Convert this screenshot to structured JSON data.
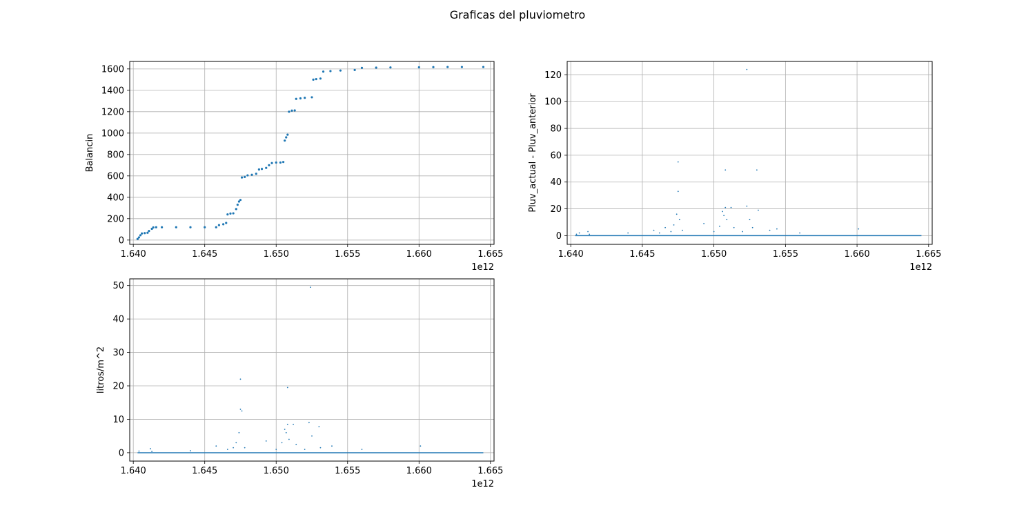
{
  "figure": {
    "title": "Graficas del pluviometro"
  },
  "colors": {
    "series": "#1f77b4",
    "grid": "#b0b0b0",
    "axes": "#000000"
  },
  "chart_data": [
    {
      "type": "scatter",
      "ylabel": "Balancin",
      "xlabel": "",
      "offset_text": "1e12",
      "grid": true,
      "xlim": [
        1.63975,
        1.66525
      ],
      "ylim": [
        -40,
        1670
      ],
      "xticks": [
        1.64,
        1.645,
        1.65,
        1.655,
        1.66,
        1.665
      ],
      "xtick_labels": [
        "1.640",
        "1.645",
        "1.650",
        "1.655",
        "1.660",
        "1.665"
      ],
      "yticks": [
        0,
        200,
        400,
        600,
        800,
        1000,
        1200,
        1400,
        1600
      ],
      "ytick_labels": [
        "0",
        "200",
        "400",
        "600",
        "800",
        "1000",
        "1200",
        "1400",
        "1600"
      ],
      "series": [
        {
          "points": [
            [
              1.6403,
              10
            ],
            [
              1.6404,
              25
            ],
            [
              1.6405,
              45
            ],
            [
              1.6406,
              62
            ],
            [
              1.6408,
              65
            ],
            [
              1.641,
              68
            ],
            [
              1.6411,
              85
            ],
            [
              1.6413,
              105
            ],
            [
              1.6414,
              118
            ],
            [
              1.6416,
              120
            ],
            [
              1.642,
              120
            ],
            [
              1.643,
              120
            ],
            [
              1.644,
              120
            ],
            [
              1.645,
              120
            ],
            [
              1.6458,
              120
            ],
            [
              1.646,
              140
            ],
            [
              1.6463,
              148
            ],
            [
              1.6465,
              160
            ],
            [
              1.6466,
              240
            ],
            [
              1.6468,
              248
            ],
            [
              1.647,
              250
            ],
            [
              1.6472,
              290
            ],
            [
              1.6473,
              330
            ],
            [
              1.6474,
              360
            ],
            [
              1.6475,
              375
            ],
            [
              1.6476,
              585
            ],
            [
              1.6478,
              590
            ],
            [
              1.648,
              605
            ],
            [
              1.6483,
              610
            ],
            [
              1.6486,
              620
            ],
            [
              1.6488,
              660
            ],
            [
              1.649,
              665
            ],
            [
              1.6493,
              675
            ],
            [
              1.6495,
              700
            ],
            [
              1.6497,
              720
            ],
            [
              1.65,
              725
            ],
            [
              1.6503,
              725
            ],
            [
              1.6505,
              730
            ],
            [
              1.6506,
              930
            ],
            [
              1.6507,
              960
            ],
            [
              1.6508,
              985
            ],
            [
              1.6509,
              1200
            ],
            [
              1.6511,
              1210
            ],
            [
              1.6513,
              1212
            ],
            [
              1.6514,
              1320
            ],
            [
              1.6517,
              1325
            ],
            [
              1.652,
              1330
            ],
            [
              1.6525,
              1335
            ],
            [
              1.6526,
              1500
            ],
            [
              1.6528,
              1505
            ],
            [
              1.6531,
              1510
            ],
            [
              1.6533,
              1575
            ],
            [
              1.6538,
              1580
            ],
            [
              1.6545,
              1585
            ],
            [
              1.6555,
              1590
            ],
            [
              1.656,
              1610
            ],
            [
              1.657,
              1612
            ],
            [
              1.658,
              1614
            ],
            [
              1.66,
              1615
            ],
            [
              1.661,
              1617
            ],
            [
              1.662,
              1618
            ],
            [
              1.663,
              1618
            ],
            [
              1.6645,
              1618
            ]
          ]
        }
      ]
    },
    {
      "type": "scatter",
      "ylabel": "Pluv_actual - Pluv_anterior",
      "xlabel": "",
      "offset_text": "1e12",
      "grid": true,
      "xlim": [
        1.63975,
        1.66525
      ],
      "ylim": [
        -6.5,
        130
      ],
      "baseline": [
        1.6403,
        1.6645
      ],
      "xticks": [
        1.64,
        1.645,
        1.65,
        1.655,
        1.66,
        1.665
      ],
      "xtick_labels": [
        "1.640",
        "1.645",
        "1.650",
        "1.655",
        "1.660",
        "1.665"
      ],
      "yticks": [
        0,
        20,
        40,
        60,
        80,
        100,
        120
      ],
      "ytick_labels": [
        "0",
        "20",
        "40",
        "60",
        "80",
        "100",
        "120"
      ],
      "series": [
        {
          "points": [
            [
              1.6404,
              1
            ],
            [
              1.6406,
              2
            ],
            [
              1.6412,
              3
            ],
            [
              1.6413,
              1
            ],
            [
              1.644,
              2
            ],
            [
              1.6458,
              4
            ],
            [
              1.6462,
              2
            ],
            [
              1.6466,
              6
            ],
            [
              1.647,
              3
            ],
            [
              1.6472,
              8
            ],
            [
              1.6474,
              16
            ],
            [
              1.6475,
              55
            ],
            [
              1.6475,
              33
            ],
            [
              1.6476,
              12
            ],
            [
              1.6478,
              4
            ],
            [
              1.6493,
              9
            ],
            [
              1.65,
              3
            ],
            [
              1.6504,
              7
            ],
            [
              1.6506,
              18
            ],
            [
              1.6507,
              15
            ],
            [
              1.6508,
              21
            ],
            [
              1.6508,
              49
            ],
            [
              1.6509,
              12
            ],
            [
              1.6512,
              21
            ],
            [
              1.6514,
              6
            ],
            [
              1.652,
              3
            ],
            [
              1.6523,
              22
            ],
            [
              1.6523,
              124
            ],
            [
              1.6525,
              12
            ],
            [
              1.6527,
              6
            ],
            [
              1.653,
              49
            ],
            [
              1.6531,
              19
            ],
            [
              1.6539,
              4
            ],
            [
              1.6544,
              5
            ],
            [
              1.656,
              2
            ],
            [
              1.6601,
              5
            ]
          ]
        }
      ]
    },
    {
      "type": "scatter",
      "ylabel": "litros/m^2",
      "xlabel": "",
      "offset_text": "1e12",
      "grid": true,
      "xlim": [
        1.63975,
        1.66525
      ],
      "ylim": [
        -2.5,
        52
      ],
      "baseline": [
        1.6403,
        1.6645
      ],
      "xticks": [
        1.64,
        1.645,
        1.65,
        1.655,
        1.66,
        1.665
      ],
      "xtick_labels": [
        "1.640",
        "1.645",
        "1.650",
        "1.655",
        "1.660",
        "1.665"
      ],
      "yticks": [
        0,
        10,
        20,
        30,
        40,
        50
      ],
      "ytick_labels": [
        "0",
        "10",
        "20",
        "30",
        "40",
        "50"
      ],
      "series": [
        {
          "points": [
            [
              1.6404,
              0.5
            ],
            [
              1.6412,
              1.2
            ],
            [
              1.6413,
              0.4
            ],
            [
              1.644,
              0.6
            ],
            [
              1.6458,
              2
            ],
            [
              1.6466,
              1
            ],
            [
              1.647,
              1.5
            ],
            [
              1.6472,
              3
            ],
            [
              1.6474,
              6
            ],
            [
              1.6475,
              22
            ],
            [
              1.6475,
              13
            ],
            [
              1.6476,
              12.5
            ],
            [
              1.6478,
              1.5
            ],
            [
              1.6493,
              3.5
            ],
            [
              1.65,
              1
            ],
            [
              1.6504,
              3
            ],
            [
              1.6506,
              7
            ],
            [
              1.6507,
              6
            ],
            [
              1.6508,
              8.5
            ],
            [
              1.6508,
              19.5
            ],
            [
              1.6509,
              4
            ],
            [
              1.6512,
              8.5
            ],
            [
              1.6514,
              2.5
            ],
            [
              1.652,
              1
            ],
            [
              1.6523,
              9
            ],
            [
              1.6524,
              49.5
            ],
            [
              1.6525,
              5
            ],
            [
              1.653,
              7.8
            ],
            [
              1.6531,
              1.5
            ],
            [
              1.6539,
              2
            ],
            [
              1.656,
              1
            ],
            [
              1.6601,
              2
            ]
          ]
        }
      ]
    }
  ]
}
